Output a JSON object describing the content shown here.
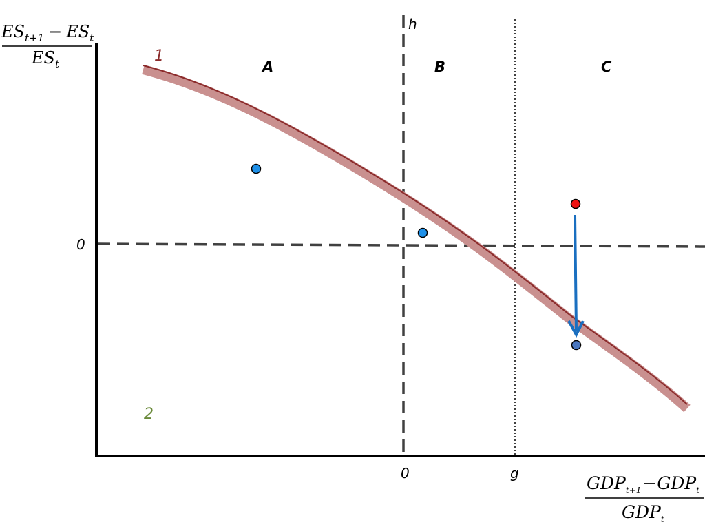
{
  "y_axis_label": {
    "numerator": {
      "base1": "ES",
      "sub1": "t+1",
      "op": "−",
      "base2": "ES",
      "sub2": "t"
    },
    "denominator": {
      "base": "ES",
      "sub": "t"
    }
  },
  "x_axis_label": {
    "numerator": {
      "base1": "GDP",
      "sub1": "t+1",
      "op": "−",
      "base2": "GDP",
      "sub2": "t"
    },
    "denominator": {
      "base": "GDP",
      "sub": "t"
    }
  },
  "labels": {
    "y_zero": "0",
    "x_zero": "0",
    "h_line": "h",
    "g_line": "g",
    "curve_1": "1",
    "label_2": "2"
  },
  "regions": [
    "A",
    "B",
    "C"
  ],
  "colors": {
    "axis": "#000000",
    "dashed": "#404040",
    "curve_fill": "#c9908f",
    "curve_line": "#8b2a2a",
    "label_1": "#8b2a2a",
    "label_2": "#6a8a3a",
    "point_blue": "#1e90e8",
    "point_red": "#ee1111",
    "point_steel": "#4a77c0",
    "arrow": "#1a6fc0"
  },
  "points": [
    {
      "name": "blue-point-region-a",
      "color": "point_blue"
    },
    {
      "name": "blue-point-region-b",
      "color": "point_blue"
    },
    {
      "name": "red-point-region-c",
      "color": "point_red"
    },
    {
      "name": "steel-blue-point-region-c",
      "color": "point_steel"
    }
  ]
}
